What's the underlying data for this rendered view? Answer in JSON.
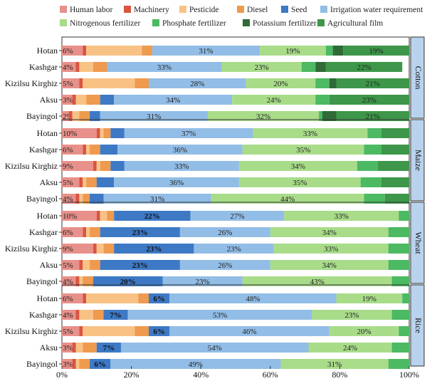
{
  "chart_data": {
    "type": "bar",
    "orientation": "horizontal",
    "stacked": "percent",
    "legend_position": "top",
    "xlim": [
      0,
      100
    ],
    "x_ticks": [
      "0%",
      "20%",
      "40%",
      "60%",
      "80%",
      "100%"
    ],
    "series": [
      {
        "name": "Human labor",
        "color": "#e8908a"
      },
      {
        "name": "Machinery",
        "color": "#d9553f"
      },
      {
        "name": "Pesticide",
        "color": "#f8c285"
      },
      {
        "name": "Diesel",
        "color": "#ee9a4f"
      },
      {
        "name": "Seed",
        "color": "#3d79c5"
      },
      {
        "name": "Irrigation water requirement",
        "color": "#92bde6"
      },
      {
        "name": "Nitrogenous fertilizer",
        "color": "#a8dc89"
      },
      {
        "name": "Phosphate fertilizer",
        "color": "#4cb963"
      },
      {
        "name": "Potassium fertilizer",
        "color": "#2f6a37"
      },
      {
        "name": "Agricultural film",
        "color": "#3d9649"
      }
    ],
    "panels": [
      {
        "name": "Cotton",
        "bars": [
          {
            "category": "Hotan",
            "values": [
              6,
              1,
              16,
              3,
              0,
              31,
              19,
              2,
              3,
              19
            ],
            "labels": [
              "6%",
              "",
              "",
              "",
              "",
              "31%",
              "19%",
              "",
              "",
              "19%"
            ]
          },
          {
            "category": "Kashgar",
            "values": [
              4,
              1,
              4,
              4,
              0,
              33,
              23,
              4,
              3,
              22
            ],
            "labels": [
              "4%",
              "",
              "",
              "",
              "",
              "33%",
              "23%",
              "",
              "",
              "22%"
            ]
          },
          {
            "category": "Kizilsu Kirghiz",
            "values": [
              5,
              1,
              15,
              4,
              0,
              28,
              20,
              4,
              2,
              21
            ],
            "labels": [
              "5%",
              "",
              "",
              "",
              "",
              "28%",
              "20%",
              "",
              "",
              "21%"
            ]
          },
          {
            "category": "Aksu",
            "values": [
              3,
              1,
              3,
              4,
              4,
              34,
              24,
              4,
              0,
              23
            ],
            "labels": [
              "3%",
              "",
              "",
              "",
              "",
              "34%",
              "24%",
              "",
              "",
              "23%"
            ]
          },
          {
            "category": "Bayingol",
            "values": [
              2,
              1,
              2,
              3,
              3,
              31,
              32,
              1,
              4,
              21
            ],
            "labels": [
              "2%",
              "",
              "",
              "",
              "",
              "31%",
              "32%",
              "",
              "",
              "21%"
            ]
          }
        ]
      },
      {
        "name": "Maize",
        "bars": [
          {
            "category": "Hotan",
            "values": [
              10,
              1,
              1,
              2,
              4,
              37,
              33,
              4,
              0,
              8
            ],
            "labels": [
              "10%",
              "",
              "",
              "",
              "",
              "37%",
              "33%",
              "",
              "",
              ""
            ]
          },
          {
            "category": "Kashgar",
            "values": [
              6,
              1,
              1,
              3,
              5,
              36,
              35,
              5,
              0,
              8
            ],
            "labels": [
              "6%",
              "",
              "",
              "",
              "",
              "36%",
              "35%",
              "",
              "",
              ""
            ]
          },
          {
            "category": "Kizilsu Kirghiz",
            "values": [
              9,
              1,
              1,
              3,
              4,
              33,
              34,
              6,
              0,
              9
            ],
            "labels": [
              "9%",
              "",
              "",
              "",
              "",
              "33%",
              "34%",
              "",
              "",
              ""
            ]
          },
          {
            "category": "Aksu",
            "values": [
              5,
              1,
              1,
              3,
              5,
              36,
              35,
              6,
              0,
              8
            ],
            "labels": [
              "5%",
              "",
              "",
              "",
              "",
              "36%",
              "35%",
              "",
              "",
              ""
            ]
          },
          {
            "category": "Bayingol",
            "values": [
              4,
              1,
              1,
              2,
              4,
              31,
              44,
              6,
              0,
              7
            ],
            "labels": [
              "4%",
              "",
              "",
              "",
              "",
              "31%",
              "44%",
              "",
              "",
              ""
            ]
          }
        ]
      },
      {
        "name": "Wheat",
        "bars": [
          {
            "category": "Hotan",
            "values": [
              10,
              1,
              2,
              2,
              22,
              27,
              33,
              3,
              0,
              0
            ],
            "labels": [
              "10%",
              "",
              "",
              "",
              "22%",
              "27%",
              "33%",
              "",
              "",
              ""
            ]
          },
          {
            "category": "Kashgar",
            "values": [
              6,
              1,
              1,
              3,
              23,
              26,
              34,
              6,
              0,
              0
            ],
            "labels": [
              "6%",
              "",
              "",
              "",
              "23%",
              "26%",
              "34%",
              "",
              "",
              ""
            ]
          },
          {
            "category": "Kizilsu Kirghiz",
            "values": [
              9,
              1,
              2,
              3,
              23,
              23,
              33,
              6,
              0,
              0
            ],
            "labels": [
              "9%",
              "",
              "",
              "",
              "23%",
              "23%",
              "33%",
              "",
              "",
              ""
            ]
          },
          {
            "category": "Aksu",
            "values": [
              5,
              1,
              2,
              3,
              23,
              26,
              34,
              6,
              0,
              0
            ],
            "labels": [
              "5%",
              "",
              "",
              "",
              "23%",
              "26%",
              "34%",
              "",
              "",
              ""
            ]
          },
          {
            "category": "Bayingol",
            "values": [
              4,
              1,
              1,
              3,
              20,
              23,
              43,
              5,
              0,
              0
            ],
            "labels": [
              "4%",
              "",
              "",
              "",
              "20%",
              "23%",
              "43%",
              "",
              "",
              ""
            ]
          }
        ]
      },
      {
        "name": "Rice",
        "bars": [
          {
            "category": "Hotan",
            "values": [
              6,
              1,
              15,
              3,
              6,
              48,
              19,
              2,
              0,
              0
            ],
            "labels": [
              "6%",
              "",
              "",
              "",
              "6%",
              "48%",
              "19%",
              "",
              "",
              ""
            ]
          },
          {
            "category": "Kashgar",
            "values": [
              4,
              1,
              4,
              3,
              7,
              53,
              23,
              5,
              0,
              0
            ],
            "labels": [
              "4%",
              "",
              "",
              "",
              "7%",
              "53%",
              "23%",
              "",
              "",
              ""
            ]
          },
          {
            "category": "Kizilsu Kirghiz",
            "values": [
              5,
              1,
              15,
              4,
              6,
              46,
              20,
              3,
              0,
              0
            ],
            "labels": [
              "5%",
              "",
              "",
              "",
              "6%",
              "46%",
              "20%",
              "",
              "",
              ""
            ]
          },
          {
            "category": "Aksu",
            "values": [
              3,
              1,
              2,
              4,
              7,
              54,
              24,
              5,
              0,
              0
            ],
            "labels": [
              "3%",
              "",
              "",
              "",
              "7%",
              "54%",
              "24%",
              "",
              "",
              ""
            ]
          },
          {
            "category": "Bayingol",
            "values": [
              3,
              1,
              1,
              3,
              6,
              49,
              31,
              6,
              0,
              0
            ],
            "labels": [
              "3%",
              "",
              "",
              "",
              "6%",
              "49%",
              "31%",
              "",
              "",
              ""
            ]
          }
        ]
      }
    ]
  }
}
